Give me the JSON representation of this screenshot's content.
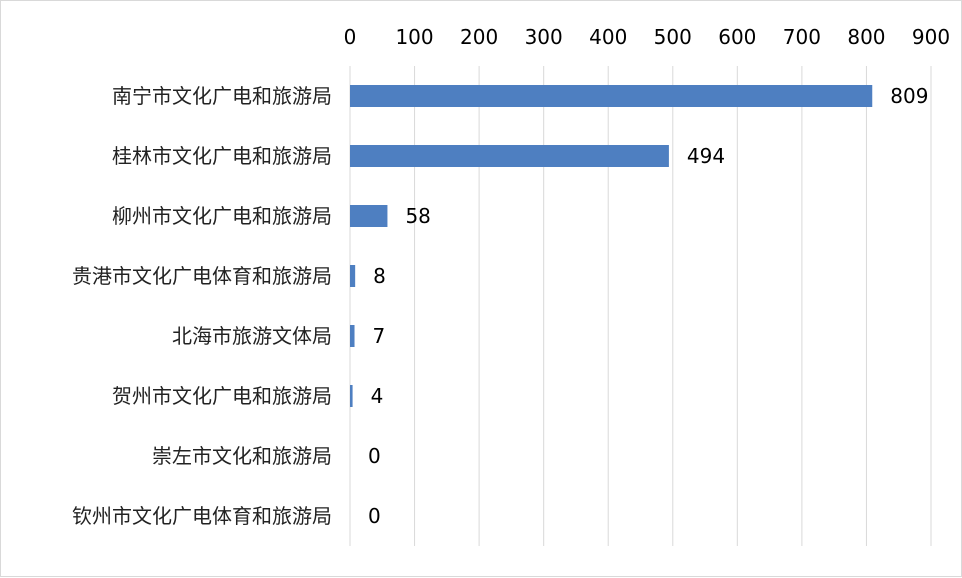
{
  "chart_data": {
    "type": "bar",
    "orientation": "horizontal",
    "categories": [
      "南宁市文化广电和旅游局",
      "桂林市文化广电和旅游局",
      "柳州市文化广电和旅游局",
      "贵港市文化广电体育和旅游局",
      "北海市旅游文体局",
      "贺州市文化广电和旅游局",
      "崇左市文化和旅游局",
      "钦州市文化广电体育和旅游局"
    ],
    "values": [
      809,
      494,
      58,
      8,
      7,
      4,
      0,
      0
    ],
    "title": "",
    "xlabel": "",
    "ylabel": "",
    "xlim": [
      0,
      900
    ],
    "ticks": [
      0,
      100,
      200,
      300,
      400,
      500,
      600,
      700,
      800,
      900
    ],
    "axis_position": "top",
    "grid": true,
    "data_labels": true,
    "bar_color": "#4e7fc1"
  }
}
